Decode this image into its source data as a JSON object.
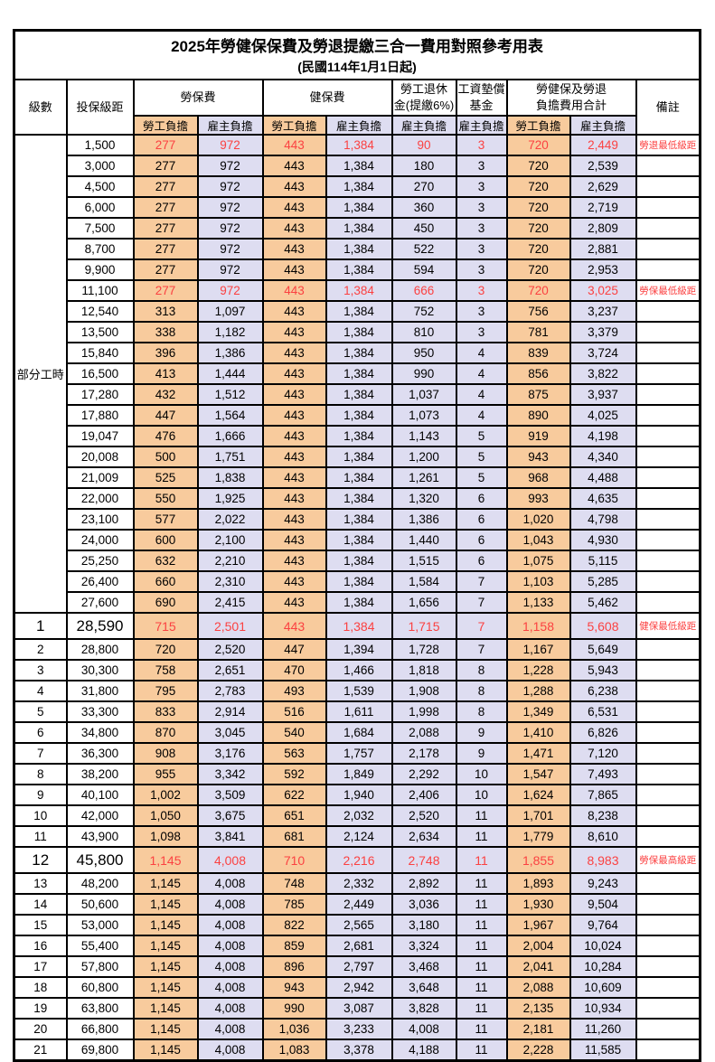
{
  "title": "2025年勞健保保費及勞退提繳三合一費用對照參考用表",
  "subtitle": "(民國114年1月1日起)",
  "colors": {
    "employee_bg": "#F8CB9D",
    "employer_bg": "#DEDDF1",
    "highlight_text": "#FB4141"
  },
  "columns": {
    "level": "級數",
    "salary": "投保級距",
    "labor_insurance": "勞保費",
    "health_insurance": "健保費",
    "pension_line1": "勞工退休",
    "pension_line2": "金(提繳6%)",
    "wage_fund_line1": "工資墊償",
    "wage_fund_line2": "基金",
    "total_line1": "勞健保及勞退",
    "total_line2": "負擔費用合計",
    "remark": "備註",
    "employee_share": "勞工負擔",
    "employer_share": "雇主負擔"
  },
  "group_label": "部分工時",
  "rows": [
    {
      "level": "",
      "salary": "1,500",
      "values": [
        "277",
        "972",
        "443",
        "1,384",
        "90",
        "3",
        "720",
        "2,449"
      ],
      "remark": "勞退最低級距",
      "red": true,
      "big": false
    },
    {
      "level": "",
      "salary": "3,000",
      "values": [
        "277",
        "972",
        "443",
        "1,384",
        "180",
        "3",
        "720",
        "2,539"
      ],
      "remark": "",
      "red": false,
      "big": false
    },
    {
      "level": "",
      "salary": "4,500",
      "values": [
        "277",
        "972",
        "443",
        "1,384",
        "270",
        "3",
        "720",
        "2,629"
      ],
      "remark": "",
      "red": false,
      "big": false
    },
    {
      "level": "",
      "salary": "6,000",
      "values": [
        "277",
        "972",
        "443",
        "1,384",
        "360",
        "3",
        "720",
        "2,719"
      ],
      "remark": "",
      "red": false,
      "big": false
    },
    {
      "level": "",
      "salary": "7,500",
      "values": [
        "277",
        "972",
        "443",
        "1,384",
        "450",
        "3",
        "720",
        "2,809"
      ],
      "remark": "",
      "red": false,
      "big": false
    },
    {
      "level": "",
      "salary": "8,700",
      "values": [
        "277",
        "972",
        "443",
        "1,384",
        "522",
        "3",
        "720",
        "2,881"
      ],
      "remark": "",
      "red": false,
      "big": false
    },
    {
      "level": "",
      "salary": "9,900",
      "values": [
        "277",
        "972",
        "443",
        "1,384",
        "594",
        "3",
        "720",
        "2,953"
      ],
      "remark": "",
      "red": false,
      "big": false
    },
    {
      "level": "",
      "salary": "11,100",
      "values": [
        "277",
        "972",
        "443",
        "1,384",
        "666",
        "3",
        "720",
        "3,025"
      ],
      "remark": "勞保最低級距",
      "red": true,
      "big": false
    },
    {
      "level": "",
      "salary": "12,540",
      "values": [
        "313",
        "1,097",
        "443",
        "1,384",
        "752",
        "3",
        "756",
        "3,237"
      ],
      "remark": "",
      "red": false,
      "big": false
    },
    {
      "level": "",
      "salary": "13,500",
      "values": [
        "338",
        "1,182",
        "443",
        "1,384",
        "810",
        "3",
        "781",
        "3,379"
      ],
      "remark": "",
      "red": false,
      "big": false
    },
    {
      "level": "",
      "salary": "15,840",
      "values": [
        "396",
        "1,386",
        "443",
        "1,384",
        "950",
        "4",
        "839",
        "3,724"
      ],
      "remark": "",
      "red": false,
      "big": false
    },
    {
      "level": "",
      "salary": "16,500",
      "values": [
        "413",
        "1,444",
        "443",
        "1,384",
        "990",
        "4",
        "856",
        "3,822"
      ],
      "remark": "",
      "red": false,
      "big": false
    },
    {
      "level": "",
      "salary": "17,280",
      "values": [
        "432",
        "1,512",
        "443",
        "1,384",
        "1,037",
        "4",
        "875",
        "3,937"
      ],
      "remark": "",
      "red": false,
      "big": false
    },
    {
      "level": "",
      "salary": "17,880",
      "values": [
        "447",
        "1,564",
        "443",
        "1,384",
        "1,073",
        "4",
        "890",
        "4,025"
      ],
      "remark": "",
      "red": false,
      "big": false
    },
    {
      "level": "",
      "salary": "19,047",
      "values": [
        "476",
        "1,666",
        "443",
        "1,384",
        "1,143",
        "5",
        "919",
        "4,198"
      ],
      "remark": "",
      "red": false,
      "big": false
    },
    {
      "level": "",
      "salary": "20,008",
      "values": [
        "500",
        "1,751",
        "443",
        "1,384",
        "1,200",
        "5",
        "943",
        "4,340"
      ],
      "remark": "",
      "red": false,
      "big": false
    },
    {
      "level": "",
      "salary": "21,009",
      "values": [
        "525",
        "1,838",
        "443",
        "1,384",
        "1,261",
        "5",
        "968",
        "4,488"
      ],
      "remark": "",
      "red": false,
      "big": false
    },
    {
      "level": "",
      "salary": "22,000",
      "values": [
        "550",
        "1,925",
        "443",
        "1,384",
        "1,320",
        "6",
        "993",
        "4,635"
      ],
      "remark": "",
      "red": false,
      "big": false
    },
    {
      "level": "",
      "salary": "23,100",
      "values": [
        "577",
        "2,022",
        "443",
        "1,384",
        "1,386",
        "6",
        "1,020",
        "4,798"
      ],
      "remark": "",
      "red": false,
      "big": false
    },
    {
      "level": "",
      "salary": "24,000",
      "values": [
        "600",
        "2,100",
        "443",
        "1,384",
        "1,440",
        "6",
        "1,043",
        "4,930"
      ],
      "remark": "",
      "red": false,
      "big": false
    },
    {
      "level": "",
      "salary": "25,250",
      "values": [
        "632",
        "2,210",
        "443",
        "1,384",
        "1,515",
        "6",
        "1,075",
        "5,115"
      ],
      "remark": "",
      "red": false,
      "big": false
    },
    {
      "level": "",
      "salary": "26,400",
      "values": [
        "660",
        "2,310",
        "443",
        "1,384",
        "1,584",
        "7",
        "1,103",
        "5,285"
      ],
      "remark": "",
      "red": false,
      "big": false
    },
    {
      "level": "",
      "salary": "27,600",
      "values": [
        "690",
        "2,415",
        "443",
        "1,384",
        "1,656",
        "7",
        "1,133",
        "5,462"
      ],
      "remark": "",
      "red": false,
      "big": false
    },
    {
      "level": "1",
      "salary": "28,590",
      "values": [
        "715",
        "2,501",
        "443",
        "1,384",
        "1,715",
        "7",
        "1,158",
        "5,608"
      ],
      "remark": "健保最低級距",
      "red": true,
      "big": true
    },
    {
      "level": "2",
      "salary": "28,800",
      "values": [
        "720",
        "2,520",
        "447",
        "1,394",
        "1,728",
        "7",
        "1,167",
        "5,649"
      ],
      "remark": "",
      "red": false,
      "big": false
    },
    {
      "level": "3",
      "salary": "30,300",
      "values": [
        "758",
        "2,651",
        "470",
        "1,466",
        "1,818",
        "8",
        "1,228",
        "5,943"
      ],
      "remark": "",
      "red": false,
      "big": false
    },
    {
      "level": "4",
      "salary": "31,800",
      "values": [
        "795",
        "2,783",
        "493",
        "1,539",
        "1,908",
        "8",
        "1,288",
        "6,238"
      ],
      "remark": "",
      "red": false,
      "big": false
    },
    {
      "level": "5",
      "salary": "33,300",
      "values": [
        "833",
        "2,914",
        "516",
        "1,611",
        "1,998",
        "8",
        "1,349",
        "6,531"
      ],
      "remark": "",
      "red": false,
      "big": false
    },
    {
      "level": "6",
      "salary": "34,800",
      "values": [
        "870",
        "3,045",
        "540",
        "1,684",
        "2,088",
        "9",
        "1,410",
        "6,826"
      ],
      "remark": "",
      "red": false,
      "big": false
    },
    {
      "level": "7",
      "salary": "36,300",
      "values": [
        "908",
        "3,176",
        "563",
        "1,757",
        "2,178",
        "9",
        "1,471",
        "7,120"
      ],
      "remark": "",
      "red": false,
      "big": false
    },
    {
      "level": "8",
      "salary": "38,200",
      "values": [
        "955",
        "3,342",
        "592",
        "1,849",
        "2,292",
        "10",
        "1,547",
        "7,493"
      ],
      "remark": "",
      "red": false,
      "big": false
    },
    {
      "level": "9",
      "salary": "40,100",
      "values": [
        "1,002",
        "3,509",
        "622",
        "1,940",
        "2,406",
        "10",
        "1,624",
        "7,865"
      ],
      "remark": "",
      "red": false,
      "big": false
    },
    {
      "level": "10",
      "salary": "42,000",
      "values": [
        "1,050",
        "3,675",
        "651",
        "2,032",
        "2,520",
        "11",
        "1,701",
        "8,238"
      ],
      "remark": "",
      "red": false,
      "big": false
    },
    {
      "level": "11",
      "salary": "43,900",
      "values": [
        "1,098",
        "3,841",
        "681",
        "2,124",
        "2,634",
        "11",
        "1,779",
        "8,610"
      ],
      "remark": "",
      "red": false,
      "big": false
    },
    {
      "level": "12",
      "salary": "45,800",
      "values": [
        "1,145",
        "4,008",
        "710",
        "2,216",
        "2,748",
        "11",
        "1,855",
        "8,983"
      ],
      "remark": "勞保最高級距",
      "red": true,
      "big": true
    },
    {
      "level": "13",
      "salary": "48,200",
      "values": [
        "1,145",
        "4,008",
        "748",
        "2,332",
        "2,892",
        "11",
        "1,893",
        "9,243"
      ],
      "remark": "",
      "red": false,
      "big": false
    },
    {
      "level": "14",
      "salary": "50,600",
      "values": [
        "1,145",
        "4,008",
        "785",
        "2,449",
        "3,036",
        "11",
        "1,930",
        "9,504"
      ],
      "remark": "",
      "red": false,
      "big": false
    },
    {
      "level": "15",
      "salary": "53,000",
      "values": [
        "1,145",
        "4,008",
        "822",
        "2,565",
        "3,180",
        "11",
        "1,967",
        "9,764"
      ],
      "remark": "",
      "red": false,
      "big": false
    },
    {
      "level": "16",
      "salary": "55,400",
      "values": [
        "1,145",
        "4,008",
        "859",
        "2,681",
        "3,324",
        "11",
        "2,004",
        "10,024"
      ],
      "remark": "",
      "red": false,
      "big": false
    },
    {
      "level": "17",
      "salary": "57,800",
      "values": [
        "1,145",
        "4,008",
        "896",
        "2,797",
        "3,468",
        "11",
        "2,041",
        "10,284"
      ],
      "remark": "",
      "red": false,
      "big": false
    },
    {
      "level": "18",
      "salary": "60,800",
      "values": [
        "1,145",
        "4,008",
        "943",
        "2,942",
        "3,648",
        "11",
        "2,088",
        "10,609"
      ],
      "remark": "",
      "red": false,
      "big": false
    },
    {
      "level": "19",
      "salary": "63,800",
      "values": [
        "1,145",
        "4,008",
        "990",
        "3,087",
        "3,828",
        "11",
        "2,135",
        "10,934"
      ],
      "remark": "",
      "red": false,
      "big": false
    },
    {
      "level": "20",
      "salary": "66,800",
      "values": [
        "1,145",
        "4,008",
        "1,036",
        "3,233",
        "4,008",
        "11",
        "2,181",
        "11,260"
      ],
      "remark": "",
      "red": false,
      "big": false
    },
    {
      "level": "21",
      "salary": "69,800",
      "values": [
        "1,145",
        "4,008",
        "1,083",
        "3,378",
        "4,188",
        "11",
        "2,228",
        "11,585"
      ],
      "remark": "",
      "red": false,
      "big": false
    }
  ]
}
